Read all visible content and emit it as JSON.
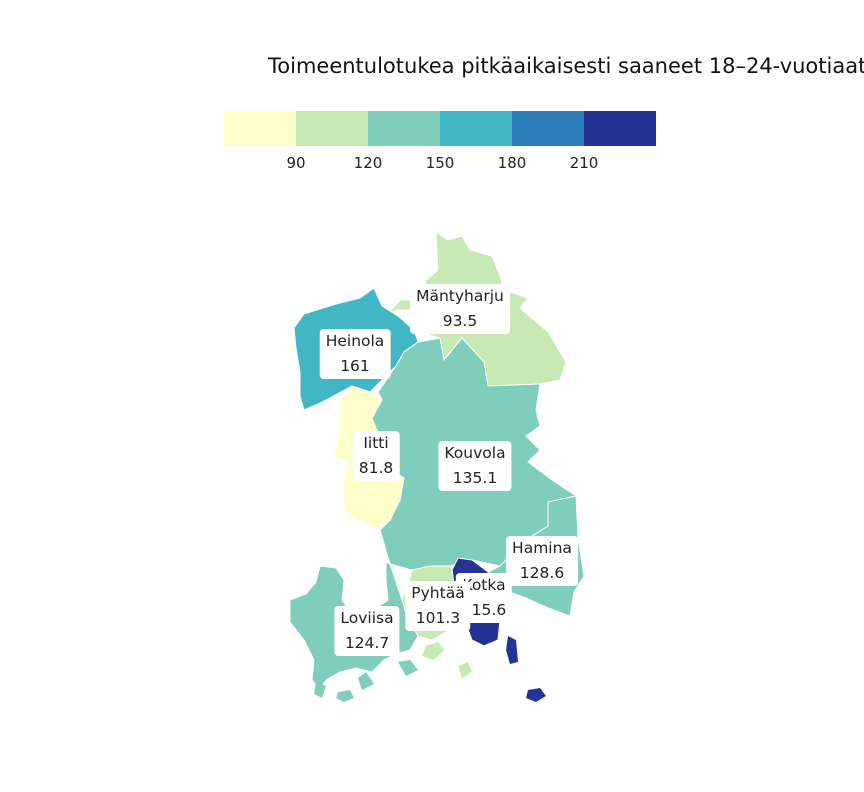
{
  "title": "Toimeentulotukea pitkäaikaisesti saaneet 18–24-vuotiaat",
  "legend": {
    "colors": [
      "#ffffcc",
      "#c7e9b4",
      "#7fcdbb",
      "#41b6c4",
      "#2c7fb8",
      "#253494"
    ],
    "ticks": [
      "90",
      "120",
      "150",
      "180",
      "210"
    ]
  },
  "regions": [
    {
      "name": "Mäntyharju",
      "value": "93.5",
      "color": "#c7e9b4"
    },
    {
      "name": "Heinola",
      "value": "161",
      "color": "#41b6c4"
    },
    {
      "name": "Iitti",
      "value": "81.8",
      "color": "#ffffcc"
    },
    {
      "name": "Kouvola",
      "value": "135.1",
      "color": "#7fcdbb"
    },
    {
      "name": "Hamina",
      "value": "128.6",
      "color": "#7fcdbb"
    },
    {
      "name": "Kotka",
      "value": "215.6",
      "color": "#253494"
    },
    {
      "name": "Pyhtää",
      "value": "101.3",
      "color": "#c7e9b4"
    },
    {
      "name": "Loviisa",
      "value": "124.7",
      "color": "#7fcdbb"
    }
  ]
}
